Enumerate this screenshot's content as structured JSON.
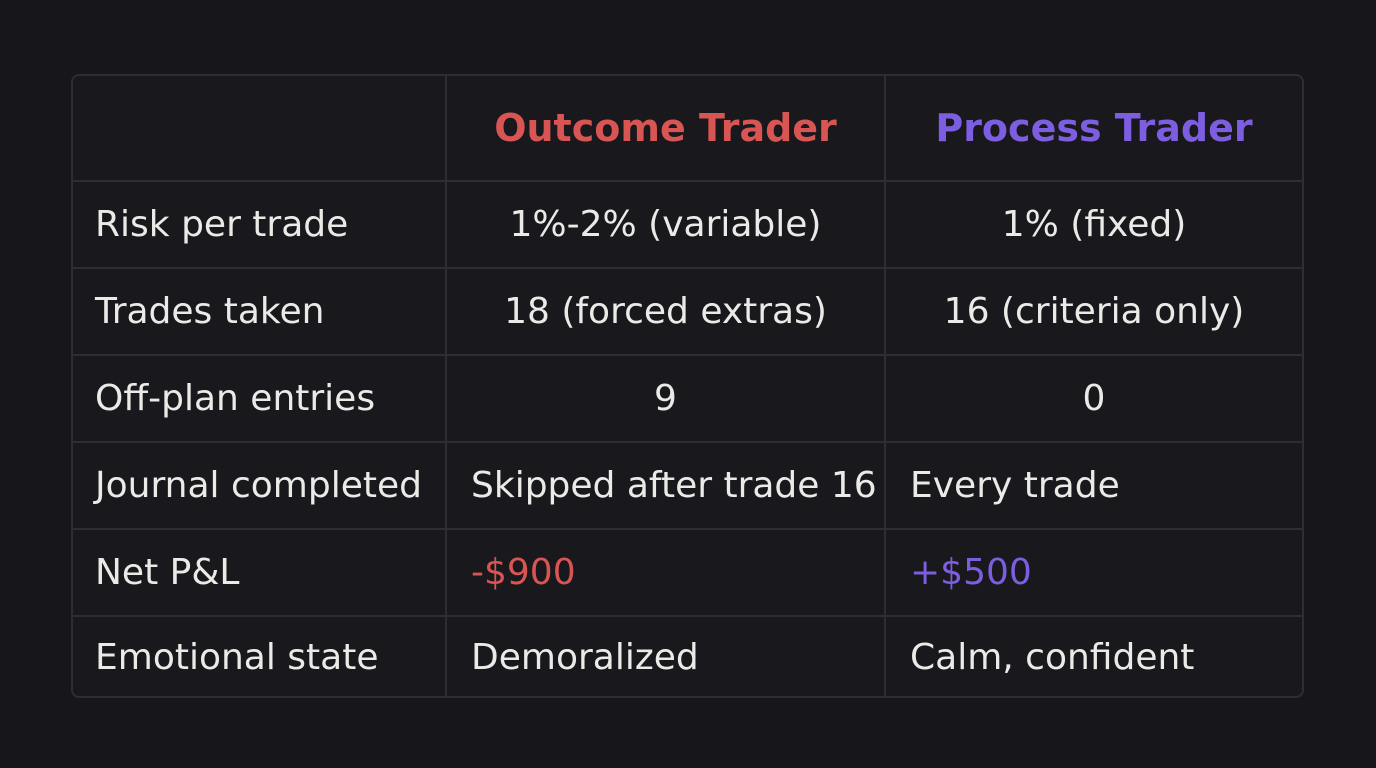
{
  "table": {
    "headers": [
      "",
      "Outcome Trader",
      "Process Trader"
    ],
    "header_colors": {
      "outcome": "#d85554",
      "process": "#7d5ee0"
    },
    "rows": [
      {
        "label": "Risk per trade",
        "outcome": "1%-2% (variable)",
        "process": "1% (fixed)",
        "align": "center"
      },
      {
        "label": "Trades taken",
        "outcome": "18 (forced extras)",
        "process": "16 (criteria only)",
        "align": "center"
      },
      {
        "label": "Off-plan entries",
        "outcome": "9",
        "process": "0",
        "align": "center"
      },
      {
        "label": "Journal completed",
        "outcome": "Skipped after trade 16",
        "process": "Every trade",
        "align": "left"
      },
      {
        "label": "Net P&L",
        "outcome": "-$900",
        "process": "+$500",
        "align": "left"
      },
      {
        "label": "Emotional state",
        "outcome": "Demoralized",
        "process": "Calm, confident",
        "align": "left"
      }
    ]
  }
}
